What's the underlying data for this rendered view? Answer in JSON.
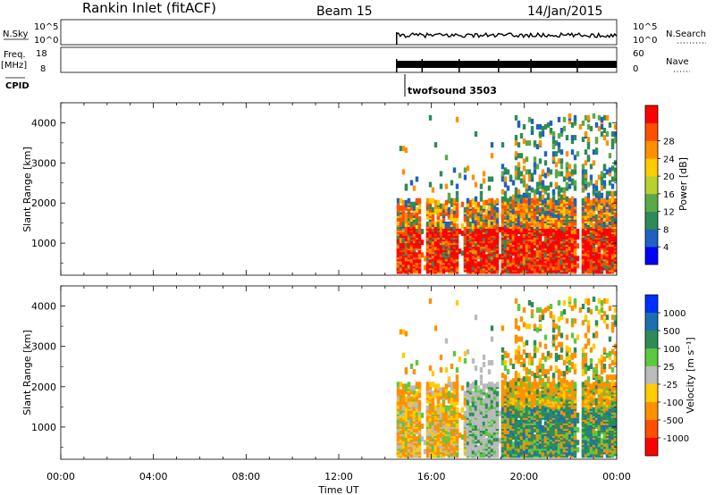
{
  "header": {
    "station": "Rankin Inlet (fitACF)",
    "beam": "Beam 15",
    "date": "14/Jan/2015"
  },
  "nsky_panel": {
    "left_label": "N.Sky",
    "left_ticks": [
      "10^5",
      "10^0"
    ],
    "right_ticks": [
      "10^5",
      "10^0"
    ],
    "right_label": "N.Search"
  },
  "freq_panel": {
    "left_label_1": "Freq.",
    "left_label_2": "[MHz]",
    "left_ticks": [
      "18",
      "8"
    ],
    "right_ticks": [
      "60",
      "0"
    ],
    "right_label": "Nave"
  },
  "cpid": {
    "label": "CPID",
    "value": "twofsound 3503"
  },
  "chart_data": [
    {
      "type": "heatmap",
      "title": "",
      "ylabel": "Slant Range [km]",
      "xlabel": "",
      "x_range_hours": [
        0,
        24
      ],
      "ylim": [
        200,
        4500
      ],
      "y_ticks": [
        1000,
        2000,
        3000,
        4000
      ],
      "data_start_hours": 14.5,
      "colorbar": {
        "label": "Power [dB]",
        "ticks": [
          "4",
          "8",
          "12",
          "16",
          "20",
          "24",
          "28"
        ],
        "colors": [
          "#0000ff",
          "#2060c0",
          "#2e8b57",
          "#5aaa4a",
          "#b8d030",
          "#ffcc00",
          "#ff9000",
          "#ff5000",
          "#ff0000"
        ]
      }
    },
    {
      "type": "heatmap",
      "title": "",
      "ylabel": "Slant Range [km]",
      "xlabel": "Time UT",
      "x_range_hours": [
        0,
        24
      ],
      "ylim": [
        200,
        4500
      ],
      "y_ticks": [
        1000,
        2000,
        3000,
        4000
      ],
      "data_start_hours": 14.5,
      "colorbar": {
        "label": "Velocity [m s⁻¹]",
        "ticks": [
          "1000",
          "500",
          "100",
          "25",
          "-25",
          "-100",
          "-500",
          "-1000"
        ],
        "colors": [
          "#0030ff",
          "#1a70b0",
          "#2e8b57",
          "#5cc840",
          "#bbbbbb",
          "#ffcc00",
          "#ff9000",
          "#ff5000",
          "#ff0000"
        ]
      }
    }
  ],
  "time_axis": {
    "labels": [
      "00:00",
      "04:00",
      "08:00",
      "12:00",
      "16:00",
      "20:00",
      "00:00"
    ],
    "title": "Time UT"
  }
}
